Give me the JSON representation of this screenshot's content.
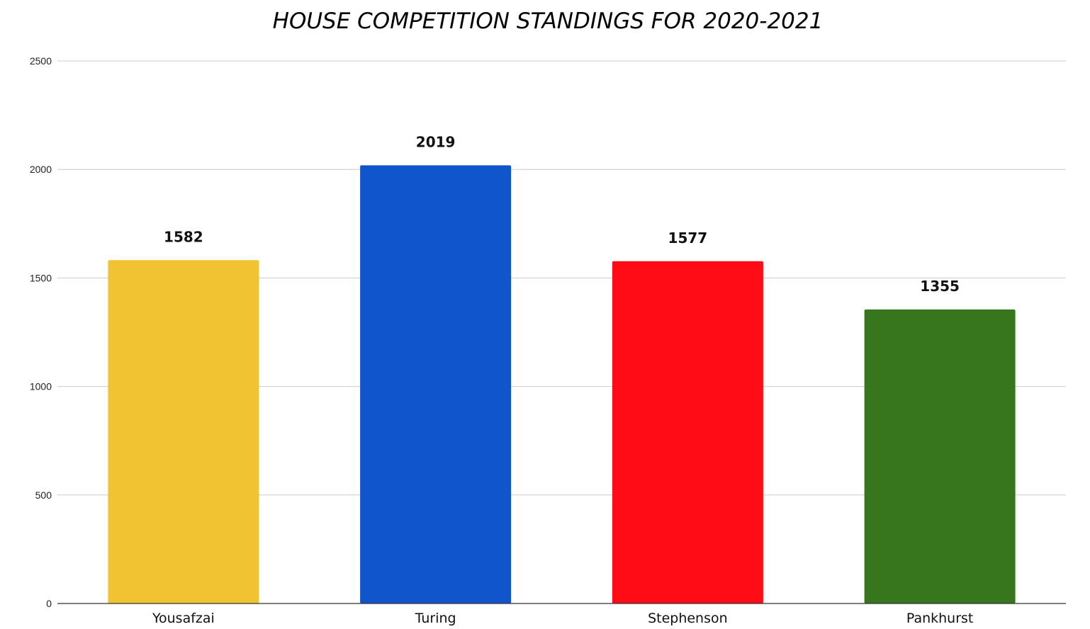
{
  "chart_data": {
    "type": "bar",
    "title": "HOUSE COMPETITION STANDINGS FOR 2020-2021",
    "xlabel": "",
    "ylabel": "",
    "categories": [
      "Yousafzai",
      "Turing",
      "Stephenson",
      "Pankhurst"
    ],
    "values": [
      1582,
      2019,
      1577,
      1355
    ],
    "data_labels": [
      "1582",
      "2019",
      "1577",
      "1355"
    ],
    "bar_colors": [
      "#f1c232",
      "#1155cc",
      "#ff0c16",
      "#38761d"
    ],
    "ylim": [
      0,
      2500
    ],
    "yticks": [
      0,
      500,
      1000,
      1500,
      2000,
      2500
    ],
    "ytick_labels": [
      "0",
      "500",
      "1000",
      "1500",
      "2000",
      "2500"
    ],
    "grid": true,
    "legend": "none"
  }
}
